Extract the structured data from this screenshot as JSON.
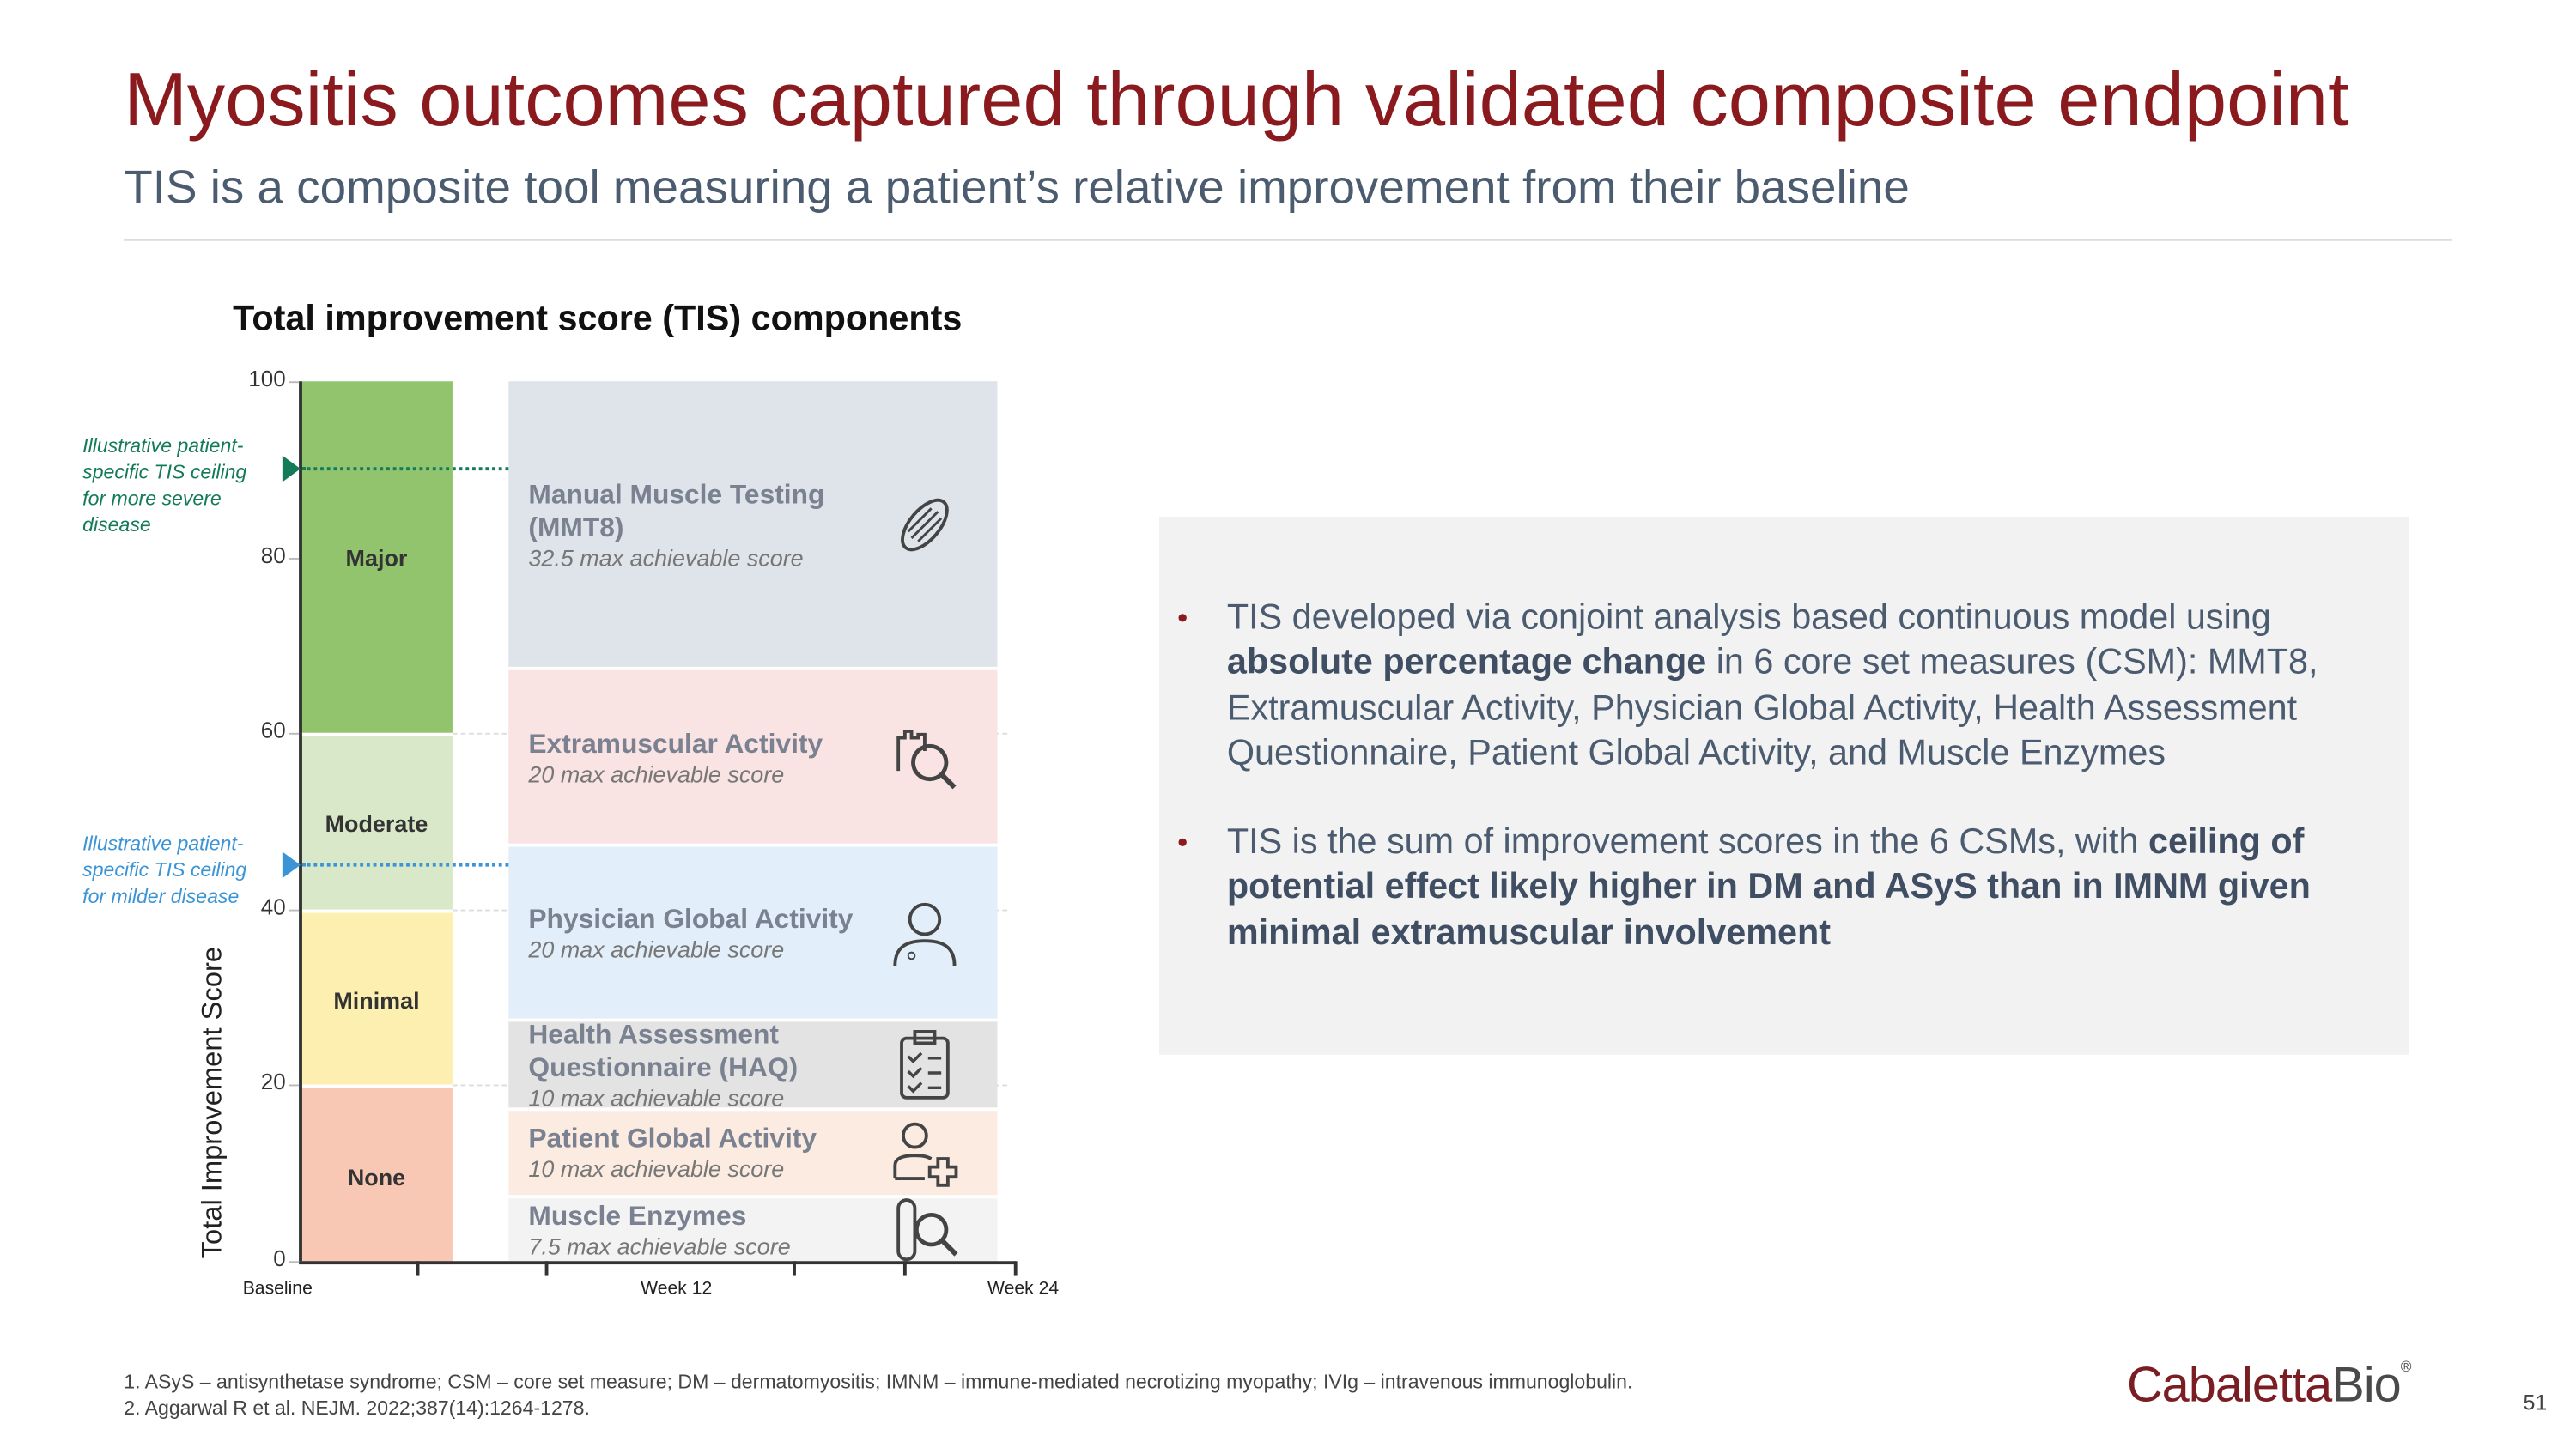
{
  "header": {
    "title": "Myositis outcomes captured through validated composite endpoint",
    "subtitle": "TIS is a composite tool measuring a patient’s relative improvement from their baseline"
  },
  "chart": {
    "title": "Total improvement score (TIS) components",
    "ylabel": "Total Improvement Score",
    "ylim": [
      0,
      100
    ],
    "yticks": [
      "0",
      "20",
      "40",
      "60",
      "80",
      "100"
    ],
    "xticks": [
      "Baseline",
      "Week 12",
      "Week 24"
    ],
    "bands": [
      {
        "label": "Major",
        "from": 60,
        "to": 100,
        "color": "#92c46e"
      },
      {
        "label": "Moderate",
        "from": 40,
        "to": 60,
        "color": "#d8e8c8"
      },
      {
        "label": "Minimal",
        "from": 20,
        "to": 40,
        "color": "#fcefb0"
      },
      {
        "label": "None",
        "from": 0,
        "to": 20,
        "color": "#f8c8b4"
      }
    ],
    "components": [
      {
        "name": "Manual Muscle Testing (MMT8)",
        "score": "32.5 max achievable score",
        "value": 32.5,
        "color": "#dfe3ea",
        "icon": "muscle-icon"
      },
      {
        "name": "Extramuscular Activity",
        "score": "20 max achievable score",
        "value": 20,
        "color": "#f9e3e3",
        "icon": "hand-magnifier-icon"
      },
      {
        "name": "Physician Global Activity",
        "score": "20 max achievable score",
        "value": 20,
        "color": "#e2effa",
        "icon": "physician-icon"
      },
      {
        "name": "Health Assessment Questionnaire (HAQ)",
        "score": "10 max achievable score",
        "value": 10,
        "color": "#e3e3e3",
        "icon": "clipboard-icon"
      },
      {
        "name": "Patient Global Activity",
        "score": "10 max achievable score",
        "value": 10,
        "color": "#fcebe0",
        "icon": "patient-plus-icon"
      },
      {
        "name": "Muscle Enzymes",
        "score": "7.5 max achievable score",
        "value": 7.5,
        "color": "#f3f3f3",
        "icon": "test-tube-magnifier-icon"
      }
    ],
    "annotations": [
      {
        "text": "Illustrative patient-specific TIS ceiling for more severe disease",
        "value": 90,
        "color": "#137a5a"
      },
      {
        "text": "Illustrative patient-specific TIS ceiling for milder disease",
        "value": 45,
        "color": "#3a94d6"
      }
    ]
  },
  "panel": {
    "bullet1": {
      "a": "TIS developed via conjoint analysis based continuous model using ",
      "b": "absolute percentage change",
      "c": " in 6 core set measures (CSM): MMT8, Extramuscular Activity, Physician Global Activity, Health Assessment Questionnaire, Patient Global Activity, and Muscle Enzymes"
    },
    "bullet2": {
      "a": "TIS is the sum of improvement scores in the 6 CSMs, with ",
      "b": "ceiling of potential effect likely higher in DM and ASyS than in IMNM given minimal extramuscular involvement"
    }
  },
  "footer": {
    "note1": "1. ASyS – antisynthetase syndrome; CSM – core set measure; DM – dermatomyositis; IMNM – immune-mediated necrotizing myopathy; IVIg – intravenous immunoglobulin.",
    "note2": "2. Aggarwal R et al. NEJM. 2022;387(14):1264-1278.",
    "logo_a": "Cabaletta",
    "logo_b": "Bio",
    "logo_mark": "®",
    "page": "51"
  },
  "colors": {
    "title": "#8b1a1f",
    "subtitle": "#4b5b70",
    "logo_a": "#7a1e24",
    "logo_b": "#4a4a4a"
  }
}
